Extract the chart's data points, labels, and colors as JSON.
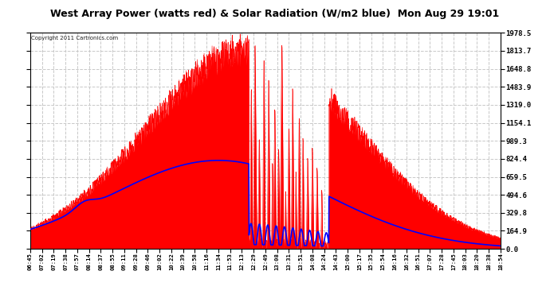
{
  "title": "West Array Power (watts red) & Solar Radiation (W/m2 blue)  Mon Aug 29 19:01",
  "copyright": "Copyright 2011 Cartronics.com",
  "y_ticks": [
    0.0,
    164.9,
    329.8,
    494.6,
    659.5,
    824.4,
    989.3,
    1154.1,
    1319.0,
    1483.9,
    1648.8,
    1813.7,
    1978.5
  ],
  "y_max": 1978.5,
  "x_labels": [
    "06:45",
    "07:02",
    "07:19",
    "07:38",
    "07:57",
    "08:14",
    "08:37",
    "08:55",
    "09:11",
    "09:28",
    "09:46",
    "10:02",
    "10:22",
    "10:39",
    "10:58",
    "11:16",
    "11:34",
    "11:53",
    "12:13",
    "12:29",
    "12:49",
    "13:08",
    "13:31",
    "13:51",
    "14:08",
    "14:24",
    "14:43",
    "15:00",
    "15:17",
    "15:35",
    "15:54",
    "16:16",
    "16:32",
    "16:51",
    "17:07",
    "17:28",
    "17:45",
    "18:03",
    "18:20",
    "18:38",
    "18:54"
  ],
  "bg_color": "#ffffff",
  "plot_bg_color": "#ffffff",
  "grid_color": "#c8c8c8",
  "red_color": "#ff0000",
  "blue_color": "#0000ff",
  "title_bg": "#c0c0c0"
}
